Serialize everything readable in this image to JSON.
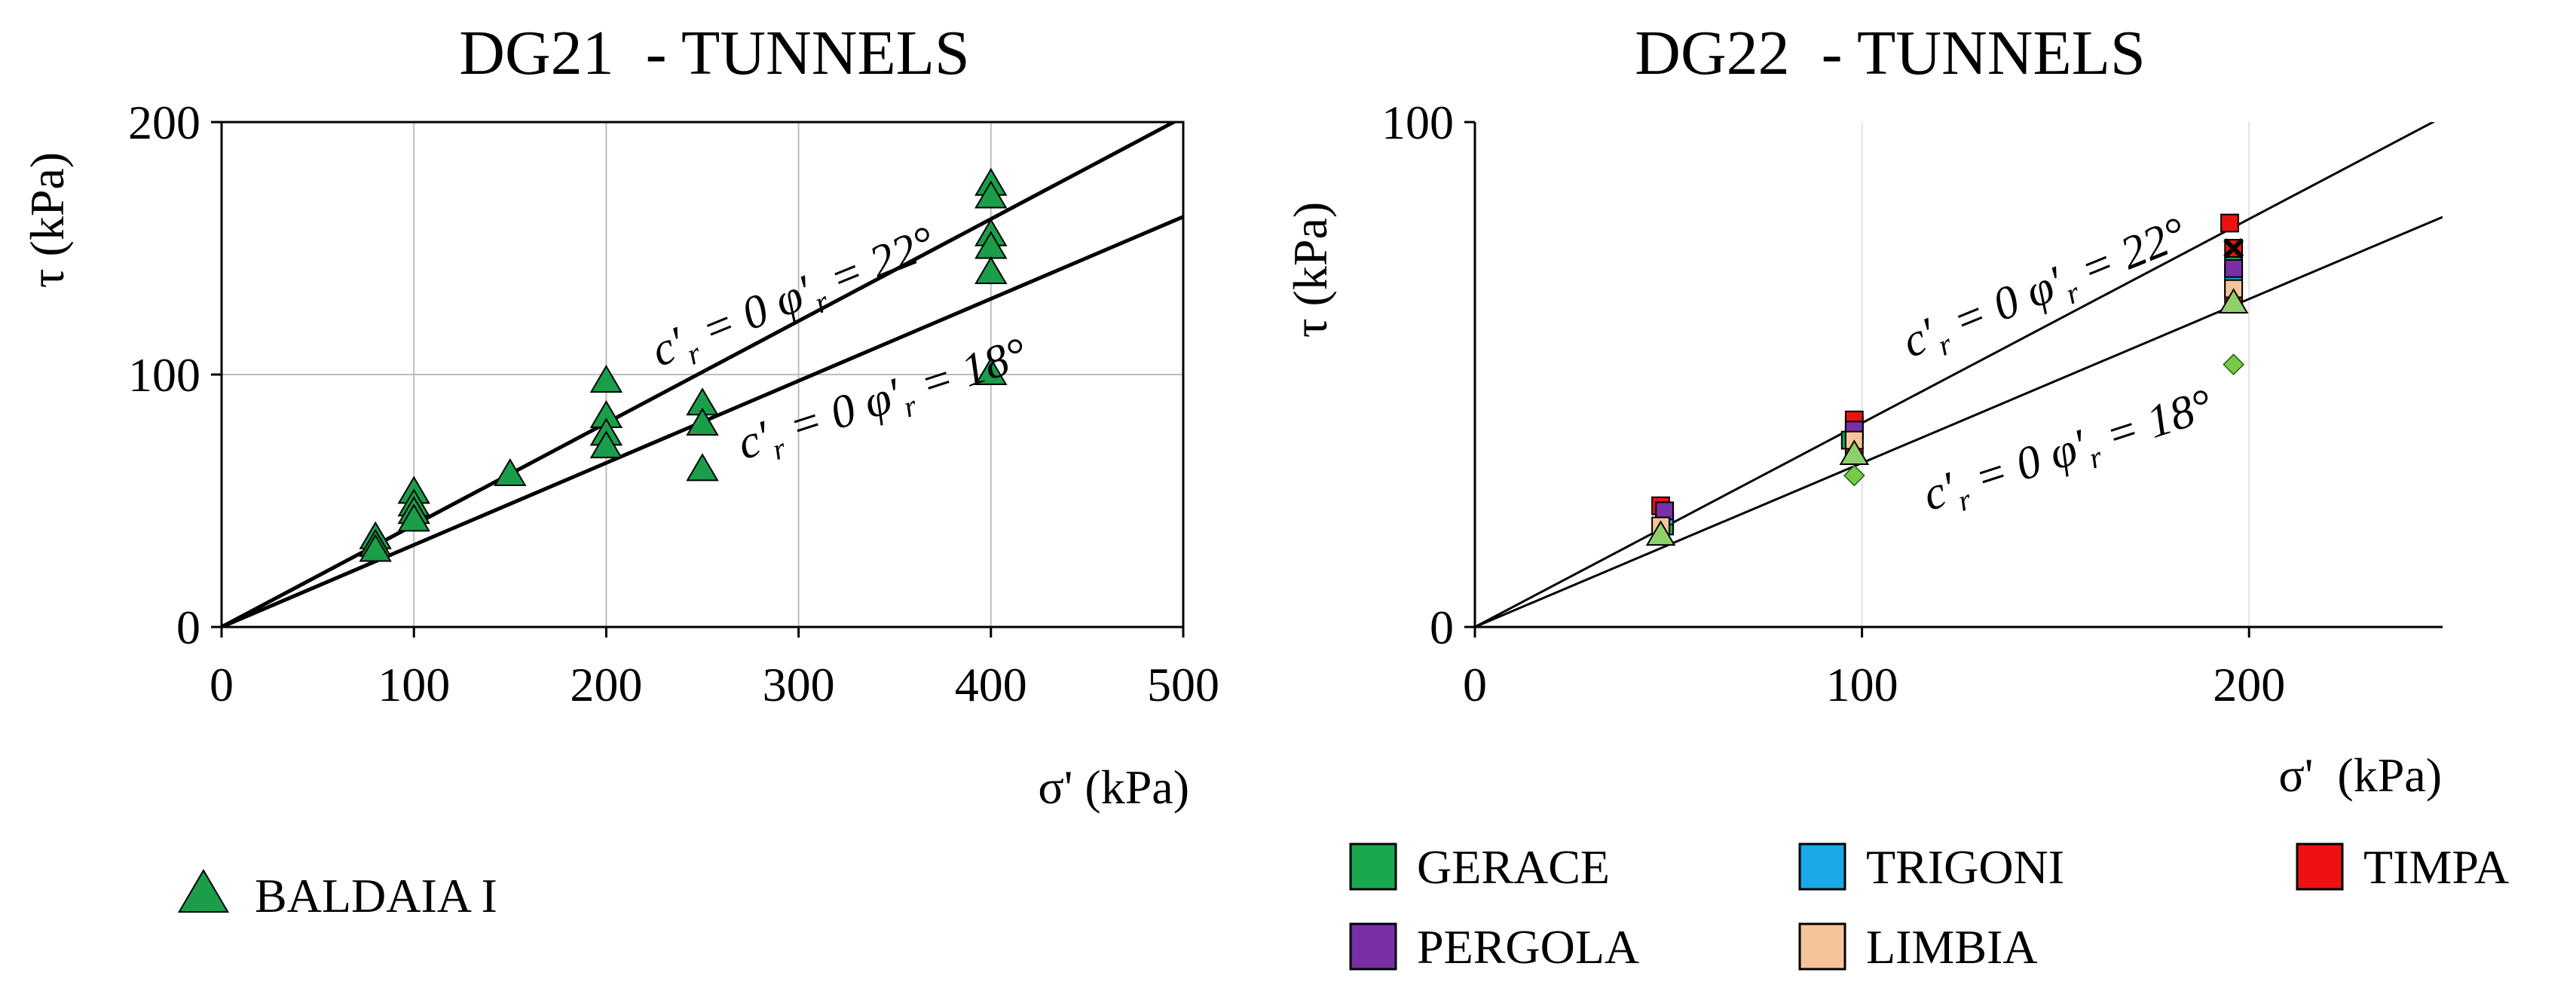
{
  "chart_data": [
    {
      "type": "scatter",
      "title": "DG21  - TUNNELS",
      "xlabel": "σ' (kPa)",
      "ylabel": "τ (kPa)",
      "xlim": [
        0,
        500
      ],
      "ylim": [
        0,
        200
      ],
      "xticks": [
        "0",
        "100",
        "200",
        "300",
        "400",
        "500"
      ],
      "yticks": [
        "0",
        "100",
        "200"
      ],
      "grid": true,
      "lines": [
        {
          "label": "c′r = 0  φ′r = 22°",
          "phi_deg": 22,
          "x": [
            0,
            500
          ],
          "y": [
            0,
            202
          ]
        },
        {
          "label": "c′r = 0 φ′r = 18°",
          "phi_deg": 18,
          "x": [
            0,
            500
          ],
          "y": [
            0,
            162.5
          ]
        }
      ],
      "series": [
        {
          "name": "BALDAIA I",
          "marker": "triangle",
          "color": "#1a9e4a",
          "x": [
            80,
            80,
            80,
            100,
            100,
            100,
            100,
            150,
            200,
            200,
            200,
            200,
            250,
            250,
            250,
            400,
            400,
            400,
            400,
            400,
            400
          ],
          "y": [
            35,
            32,
            30,
            53,
            48,
            45,
            42,
            60,
            97,
            83,
            76,
            71,
            88,
            80,
            62,
            175,
            170,
            155,
            150,
            140,
            100
          ]
        }
      ],
      "legend": {
        "position": "bottom-left",
        "entries": [
          "BALDAIA I"
        ]
      }
    },
    {
      "type": "scatter",
      "title": "DG22  - TUNNELS",
      "xlabel": "σ'  (kPa)",
      "ylabel": "τ (kPa)",
      "xlim": [
        0,
        250
      ],
      "ylim": [
        0,
        100
      ],
      "xticks": [
        "0",
        "100",
        "200"
      ],
      "yticks": [
        "0",
        "100"
      ],
      "grid": true,
      "lines": [
        {
          "label": "c′r = 0  φ′r = 22°",
          "phi_deg": 22,
          "x": [
            0,
            250
          ],
          "y": [
            0,
            101
          ]
        },
        {
          "label": "c′r = 0 φ′r = 18°",
          "phi_deg": 18,
          "x": [
            0,
            250
          ],
          "y": [
            0,
            81.2
          ]
        }
      ],
      "series": [
        {
          "name": "GERACE",
          "marker": "square",
          "color": "#1aa84c",
          "x": [
            49,
            49,
            97,
            98,
            196,
            196
          ],
          "y": [
            21,
            20,
            37,
            40,
            72,
            70
          ]
        },
        {
          "name": "TRIGONI",
          "marker": "square",
          "color": "#19a8e8",
          "x": [
            49,
            98,
            196
          ],
          "y": [
            22,
            38,
            68
          ]
        },
        {
          "name": "TIMPA",
          "marker": "square",
          "color": "#ee1111",
          "x": [
            48,
            98,
            98,
            195,
            196,
            196
          ],
          "y": [
            24,
            41,
            34,
            80,
            75,
            65
          ]
        },
        {
          "name": "PERGOLA",
          "marker": "square",
          "color": "#7a2fa6",
          "x": [
            49,
            98,
            196
          ],
          "y": [
            23,
            39,
            71
          ]
        },
        {
          "name": "LIMBIA",
          "marker": "square",
          "color": "#f6c49a",
          "x": [
            48,
            98,
            196
          ],
          "y": [
            20,
            37,
            67
          ]
        },
        {
          "name": "",
          "marker": "diamond",
          "color": "#7ac943",
          "x": [
            98,
            196
          ],
          "y": [
            30,
            52
          ]
        },
        {
          "name": "",
          "marker": "triangle",
          "color": "#8fd06a",
          "x": [
            48,
            98,
            196
          ],
          "y": [
            18,
            34,
            64
          ]
        },
        {
          "name": "",
          "marker": "x",
          "color": "#000000",
          "x": [
            196
          ],
          "y": [
            75
          ]
        }
      ],
      "legend": {
        "position": "bottom",
        "entries": [
          "GERACE",
          "TRIGONI",
          "TIMPA",
          "PERGOLA",
          "LIMBIA"
        ]
      }
    }
  ]
}
